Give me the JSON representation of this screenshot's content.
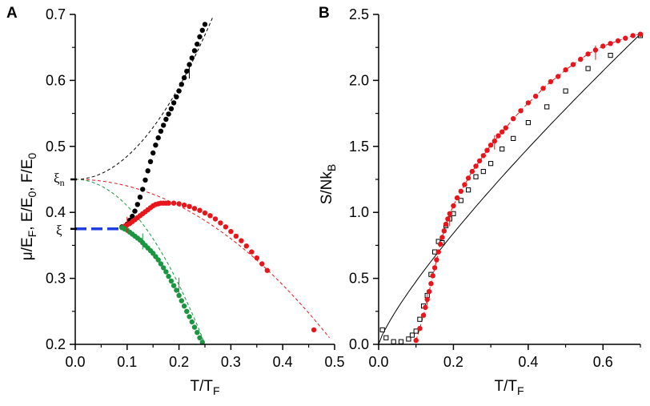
{
  "chart_data": [
    {
      "panel": "A",
      "type": "scatter",
      "xlabel": "T/T_F",
      "ylabel": "μ/E_F, E/E_0, F/E_0",
      "xlim": [
        0.0,
        0.5
      ],
      "ylim": [
        0.2,
        0.7
      ],
      "xticks": [
        "0.0",
        "0.1",
        "0.2",
        "0.3",
        "0.4",
        "0.5"
      ],
      "yticks": [
        "0.2",
        "0.3",
        "0.4",
        "0.5",
        "0.6",
        "0.7"
      ],
      "annotations": [
        {
          "text": "ξ",
          "y": 0.375
        },
        {
          "text": "ξn",
          "y": 0.45
        }
      ],
      "ground_state": {
        "color": "#1f3fe0",
        "x": [
          0.0,
          0.09
        ],
        "y": [
          0.375,
          0.375
        ]
      },
      "series": [
        {
          "color": "#000000",
          "x": [
            0.09,
            0.1,
            0.105,
            0.11,
            0.115,
            0.12,
            0.125,
            0.13,
            0.135,
            0.14,
            0.145,
            0.15,
            0.155,
            0.16,
            0.165,
            0.17,
            0.175,
            0.18,
            0.185,
            0.19,
            0.195,
            0.2,
            0.205,
            0.21,
            0.215,
            0.22,
            0.225,
            0.23,
            0.235,
            0.24,
            0.245,
            0.25
          ],
          "y": [
            0.378,
            0.382,
            0.388,
            0.394,
            0.402,
            0.412,
            0.423,
            0.435,
            0.449,
            0.463,
            0.477,
            0.49,
            0.502,
            0.513,
            0.523,
            0.532,
            0.541,
            0.549,
            0.557,
            0.566,
            0.575,
            0.584,
            0.594,
            0.604,
            0.614,
            0.624,
            0.634,
            0.645,
            0.655,
            0.666,
            0.676,
            0.685
          ]
        },
        {
          "color": "#e8151b",
          "x": [
            0.09,
            0.095,
            0.1,
            0.105,
            0.11,
            0.115,
            0.12,
            0.125,
            0.13,
            0.135,
            0.14,
            0.145,
            0.15,
            0.155,
            0.16,
            0.165,
            0.17,
            0.175,
            0.18,
            0.19,
            0.2,
            0.21,
            0.22,
            0.23,
            0.24,
            0.25,
            0.26,
            0.27,
            0.28,
            0.29,
            0.3,
            0.31,
            0.32,
            0.33,
            0.34,
            0.35,
            0.36,
            0.37,
            0.46
          ],
          "y": [
            0.377,
            0.379,
            0.381,
            0.383,
            0.386,
            0.389,
            0.392,
            0.395,
            0.398,
            0.401,
            0.404,
            0.407,
            0.41,
            0.412,
            0.413,
            0.414,
            0.414,
            0.414,
            0.414,
            0.414,
            0.413,
            0.411,
            0.409,
            0.406,
            0.403,
            0.399,
            0.395,
            0.39,
            0.384,
            0.378,
            0.371,
            0.364,
            0.357,
            0.349,
            0.34,
            0.331,
            0.322,
            0.312,
            0.222
          ]
        },
        {
          "color": "#1a9641",
          "x": [
            0.09,
            0.095,
            0.1,
            0.105,
            0.11,
            0.115,
            0.12,
            0.125,
            0.13,
            0.135,
            0.14,
            0.145,
            0.15,
            0.155,
            0.16,
            0.165,
            0.17,
            0.175,
            0.18,
            0.185,
            0.19,
            0.195,
            0.2,
            0.205,
            0.21,
            0.215,
            0.22,
            0.225,
            0.23,
            0.235,
            0.24,
            0.245
          ],
          "y": [
            0.377,
            0.375,
            0.373,
            0.37,
            0.367,
            0.364,
            0.361,
            0.358,
            0.354,
            0.35,
            0.346,
            0.342,
            0.338,
            0.333,
            0.328,
            0.322,
            0.316,
            0.31,
            0.303,
            0.296,
            0.289,
            0.282,
            0.274,
            0.266,
            0.258,
            0.25,
            0.242,
            0.234,
            0.226,
            0.218,
            0.21,
            0.203
          ]
        }
      ]
    },
    {
      "panel": "B",
      "type": "scatter",
      "xlabel": "T/T_F",
      "ylabel": "S/Nk_B",
      "xlim": [
        0.0,
        0.7
      ],
      "ylim": [
        0.0,
        2.5
      ],
      "xticks": [
        "0.0",
        "0.2",
        "0.4",
        "0.6"
      ],
      "yticks": [
        "0.0",
        "0.5",
        "1.0",
        "1.5",
        "2.0",
        "2.5"
      ],
      "series": [
        {
          "color": "#e8151b",
          "marker": "filled-circle",
          "x": [
            0.1,
            0.11,
            0.12,
            0.125,
            0.13,
            0.135,
            0.14,
            0.145,
            0.15,
            0.155,
            0.16,
            0.165,
            0.17,
            0.175,
            0.18,
            0.185,
            0.19,
            0.2,
            0.21,
            0.22,
            0.23,
            0.24,
            0.25,
            0.26,
            0.27,
            0.28,
            0.29,
            0.3,
            0.31,
            0.32,
            0.33,
            0.34,
            0.36,
            0.38,
            0.4,
            0.42,
            0.44,
            0.46,
            0.48,
            0.5,
            0.52,
            0.54,
            0.56,
            0.58,
            0.6,
            0.62,
            0.64,
            0.66,
            0.68,
            0.7
          ],
          "y": [
            0.03,
            0.12,
            0.22,
            0.28,
            0.34,
            0.4,
            0.46,
            0.52,
            0.58,
            0.64,
            0.7,
            0.76,
            0.81,
            0.86,
            0.91,
            0.95,
            0.99,
            1.05,
            1.11,
            1.16,
            1.21,
            1.26,
            1.31,
            1.35,
            1.39,
            1.43,
            1.47,
            1.51,
            1.54,
            1.58,
            1.61,
            1.64,
            1.71,
            1.77,
            1.83,
            1.88,
            1.94,
            1.99,
            2.03,
            2.08,
            2.12,
            2.16,
            2.2,
            2.23,
            2.26,
            2.28,
            2.3,
            2.32,
            2.34,
            2.35
          ]
        },
        {
          "color": "#000000",
          "marker": "open-square",
          "x": [
            0.01,
            0.02,
            0.04,
            0.06,
            0.08,
            0.09,
            0.1,
            0.11,
            0.12,
            0.13,
            0.14,
            0.15,
            0.16,
            0.17,
            0.18,
            0.19,
            0.2,
            0.22,
            0.24,
            0.26,
            0.28,
            0.3,
            0.33,
            0.36,
            0.4,
            0.45,
            0.5,
            0.56,
            0.62,
            0.7
          ],
          "y": [
            0.11,
            0.05,
            0.02,
            0.02,
            0.04,
            0.07,
            0.1,
            0.19,
            0.29,
            0.37,
            0.53,
            0.7,
            0.78,
            0.77,
            0.9,
            0.95,
            0.99,
            1.09,
            1.17,
            1.27,
            1.31,
            1.37,
            1.48,
            1.56,
            1.68,
            1.8,
            1.92,
            2.09,
            2.19,
            2.34
          ]
        }
      ]
    }
  ]
}
